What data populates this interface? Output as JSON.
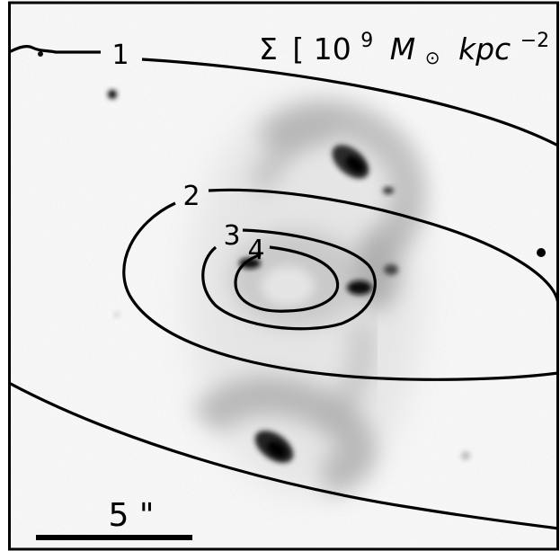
{
  "title": {
    "symbol": "Σ",
    "open_bracket": "[",
    "base": "10",
    "exponent": "9",
    "mass_symbol": "M",
    "mass_subscript": "⊙",
    "unit": "kpc",
    "unit_exponent": "−2",
    "close_bracket": "]"
  },
  "contour_labels": [
    "1",
    "2",
    "3",
    "4"
  ],
  "scale_bar": {
    "label": "5 \""
  },
  "colors": {
    "contour": "#000000",
    "background": "#ffffff",
    "galaxy": "#7a7a7a"
  }
}
